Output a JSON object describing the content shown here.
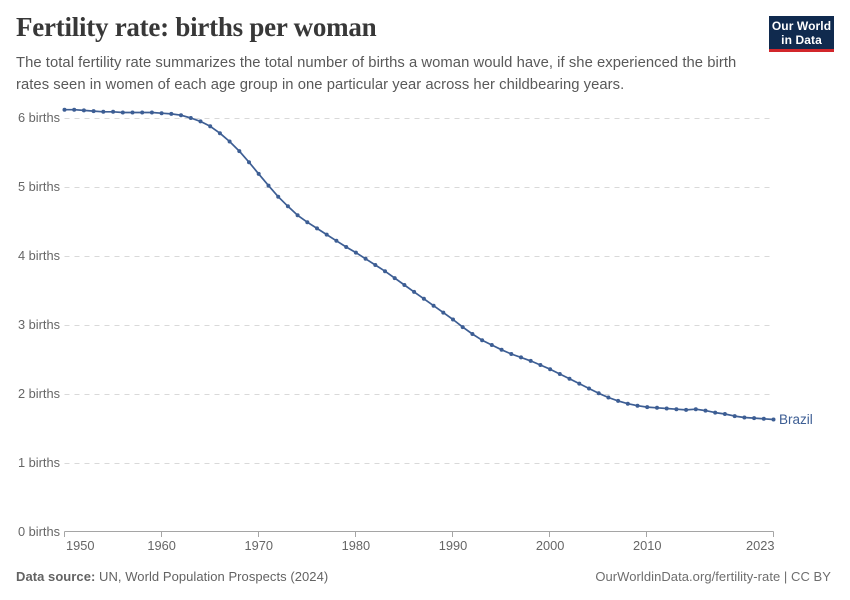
{
  "header": {
    "title": "Fertility rate: births per woman",
    "subtitle_line1": "The total fertility rate summarizes the total number of births a woman would have, if she experienced the birth",
    "subtitle_line2": "rates seen in women of each age group in one particular year across her childbearing years.",
    "logo": {
      "line1": "Our World",
      "line2": "in Data",
      "bg_color": "#102a4e",
      "bar_color": "#d2262b",
      "text_color": "#ffffff"
    }
  },
  "footer": {
    "source_label": "Data source:",
    "source_text": " UN, World Population Prospects (2024)",
    "right_text": "OurWorldinData.org/fertility-rate | CC BY"
  },
  "chart_data": {
    "type": "line",
    "title": "Fertility rate: births per woman",
    "xlabel": "",
    "ylabel": "",
    "xlim": [
      1950,
      2023
    ],
    "ylim": [
      0,
      6.4
    ],
    "grid": "horizontal-dashed",
    "legend_position": "end-of-line",
    "x_ticks": [
      1950,
      1960,
      1970,
      1980,
      1990,
      2000,
      2010,
      2023
    ],
    "x_tick_labels": [
      "1950",
      "1960",
      "1970",
      "1980",
      "1990",
      "2000",
      "2010",
      "2023"
    ],
    "y_ticks": [
      0,
      1,
      2,
      3,
      4,
      5,
      6
    ],
    "y_tick_labels": [
      "0 births",
      "1 births",
      "2 births",
      "3 births",
      "4 births",
      "5 births",
      "6 births"
    ],
    "colors": {
      "line": "#3d5e94",
      "grid": "#d9d9d9",
      "axis": "#a5a5a5"
    },
    "series": [
      {
        "name": "Brazil",
        "color": "#3d5e94",
        "x": [
          1950,
          1951,
          1952,
          1953,
          1954,
          1955,
          1956,
          1957,
          1958,
          1959,
          1960,
          1961,
          1962,
          1963,
          1964,
          1965,
          1966,
          1967,
          1968,
          1969,
          1970,
          1971,
          1972,
          1973,
          1974,
          1975,
          1976,
          1977,
          1978,
          1979,
          1980,
          1981,
          1982,
          1983,
          1984,
          1985,
          1986,
          1987,
          1988,
          1989,
          1990,
          1991,
          1992,
          1993,
          1994,
          1995,
          1996,
          1997,
          1998,
          1999,
          2000,
          2001,
          2002,
          2003,
          2004,
          2005,
          2006,
          2007,
          2008,
          2009,
          2010,
          2011,
          2012,
          2013,
          2014,
          2015,
          2016,
          2017,
          2018,
          2019,
          2020,
          2021,
          2022,
          2023
        ],
        "values": [
          6.12,
          6.12,
          6.11,
          6.1,
          6.09,
          6.09,
          6.08,
          6.08,
          6.08,
          6.08,
          6.07,
          6.06,
          6.04,
          6.0,
          5.95,
          5.88,
          5.78,
          5.66,
          5.52,
          5.36,
          5.19,
          5.02,
          4.86,
          4.72,
          4.59,
          4.49,
          4.4,
          4.31,
          4.22,
          4.13,
          4.05,
          3.96,
          3.87,
          3.78,
          3.68,
          3.58,
          3.48,
          3.38,
          3.28,
          3.18,
          3.08,
          2.97,
          2.87,
          2.78,
          2.71,
          2.64,
          2.58,
          2.53,
          2.48,
          2.42,
          2.36,
          2.29,
          2.22,
          2.15,
          2.08,
          2.01,
          1.95,
          1.9,
          1.86,
          1.83,
          1.81,
          1.8,
          1.79,
          1.78,
          1.77,
          1.78,
          1.76,
          1.73,
          1.71,
          1.68,
          1.66,
          1.65,
          1.64,
          1.63
        ]
      }
    ],
    "end_label": "Brazil"
  }
}
